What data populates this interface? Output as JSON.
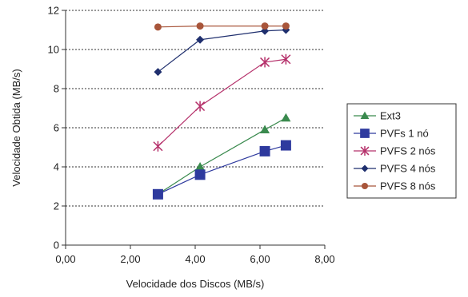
{
  "chart_data": {
    "type": "line",
    "title": "",
    "xlabel": "Velocidade dos Discos (MB/s)",
    "ylabel": "Velocidade Obtida (MB/s)",
    "xlim": [
      0,
      8
    ],
    "ylim": [
      0,
      12
    ],
    "xticks": [
      0,
      2,
      4,
      6,
      8
    ],
    "xtick_labels": [
      "0,00",
      "2,00",
      "4,00",
      "6,00",
      "8,00"
    ],
    "yticks": [
      0,
      2,
      4,
      6,
      8,
      10,
      12
    ],
    "ytick_labels": [
      "0",
      "2",
      "4",
      "6",
      "8",
      "10",
      "12"
    ],
    "grid": "horizontal dotted",
    "legend_position": "right",
    "series": [
      {
        "name": "Ext3",
        "color": "#3a8a4e",
        "marker": "triangle",
        "x": [
          2.85,
          4.15,
          6.15,
          6.8
        ],
        "y": [
          2.6,
          4.0,
          5.9,
          6.5
        ]
      },
      {
        "name": "PVFs 1 nó",
        "color": "#2e3a9e",
        "marker": "square",
        "x": [
          2.85,
          4.15,
          6.15,
          6.8
        ],
        "y": [
          2.6,
          3.6,
          4.8,
          5.1
        ]
      },
      {
        "name": "PVFS 2 nós",
        "color": "#b5306a",
        "marker": "star",
        "x": [
          2.85,
          4.15,
          6.15,
          6.8
        ],
        "y": [
          5.05,
          7.1,
          9.35,
          9.5
        ]
      },
      {
        "name": "PVFS 4 nós",
        "color": "#1f2f6e",
        "marker": "diamond",
        "x": [
          2.85,
          4.15,
          6.15,
          6.8
        ],
        "y": [
          8.85,
          10.5,
          10.95,
          11.0
        ]
      },
      {
        "name": "PVFS 8 nós",
        "color": "#a8553a",
        "marker": "circle",
        "x": [
          2.85,
          4.15,
          6.15,
          6.8
        ],
        "y": [
          11.15,
          11.2,
          11.2,
          11.2
        ]
      }
    ]
  }
}
